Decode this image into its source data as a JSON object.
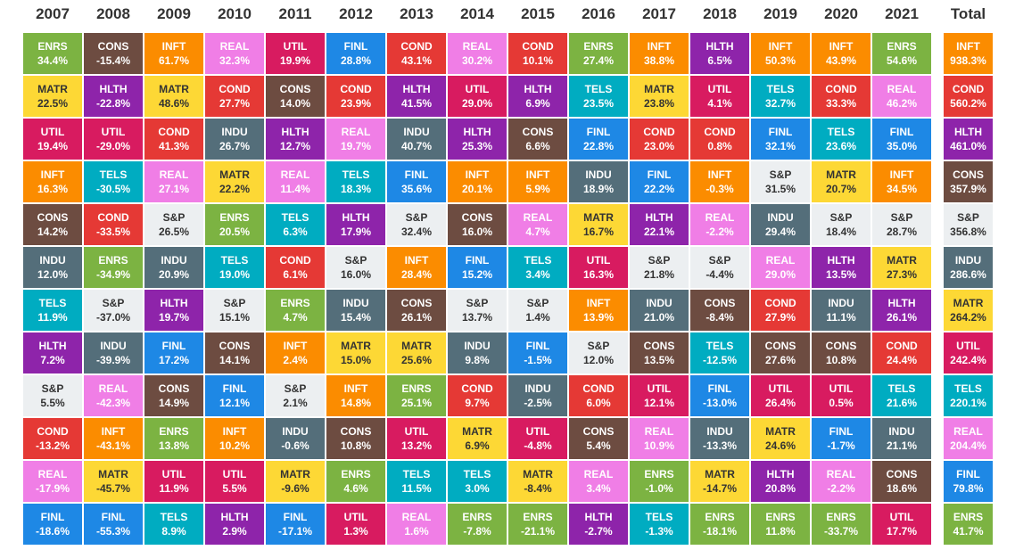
{
  "chart_data": {
    "type": "table",
    "title": "",
    "columns": [
      "2007",
      "2008",
      "2009",
      "2010",
      "2011",
      "2012",
      "2013",
      "2014",
      "2015",
      "2016",
      "2017",
      "2018",
      "2019",
      "2020",
      "2021"
    ],
    "total_label": "Total",
    "colors": {
      "ENRS": "#7cb342",
      "CONS": "#6d4c41",
      "INFT": "#fb8c00",
      "REAL": "#f07ee6",
      "UTIL": "#d81b60",
      "FINL": "#1e88e5",
      "COND": "#e53935",
      "HLTH": "#8e24aa",
      "MATR": "#fdd835",
      "TELS": "#00acc1",
      "INDU": "#546e7a",
      "S&P": "#eceff1"
    },
    "years": [
      {
        "year": "2007",
        "cells": [
          {
            "sector": "ENRS",
            "value": "34.4%"
          },
          {
            "sector": "MATR",
            "value": "22.5%"
          },
          {
            "sector": "UTIL",
            "value": "19.4%"
          },
          {
            "sector": "INFT",
            "value": "16.3%"
          },
          {
            "sector": "CONS",
            "value": "14.2%"
          },
          {
            "sector": "INDU",
            "value": "12.0%"
          },
          {
            "sector": "TELS",
            "value": "11.9%"
          },
          {
            "sector": "HLTH",
            "value": "7.2%"
          },
          {
            "sector": "S&P",
            "value": "5.5%"
          },
          {
            "sector": "COND",
            "value": "-13.2%"
          },
          {
            "sector": "REAL",
            "value": "-17.9%"
          },
          {
            "sector": "FINL",
            "value": "-18.6%"
          }
        ]
      },
      {
        "year": "2008",
        "cells": [
          {
            "sector": "CONS",
            "value": "-15.4%"
          },
          {
            "sector": "HLTH",
            "value": "-22.8%"
          },
          {
            "sector": "UTIL",
            "value": "-29.0%"
          },
          {
            "sector": "TELS",
            "value": "-30.5%"
          },
          {
            "sector": "COND",
            "value": "-33.5%"
          },
          {
            "sector": "ENRS",
            "value": "-34.9%"
          },
          {
            "sector": "S&P",
            "value": "-37.0%"
          },
          {
            "sector": "INDU",
            "value": "-39.9%"
          },
          {
            "sector": "REAL",
            "value": "-42.3%"
          },
          {
            "sector": "INFT",
            "value": "-43.1%"
          },
          {
            "sector": "MATR",
            "value": "-45.7%"
          },
          {
            "sector": "FINL",
            "value": "-55.3%"
          }
        ]
      },
      {
        "year": "2009",
        "cells": [
          {
            "sector": "INFT",
            "value": "61.7%"
          },
          {
            "sector": "MATR",
            "value": "48.6%"
          },
          {
            "sector": "COND",
            "value": "41.3%"
          },
          {
            "sector": "REAL",
            "value": "27.1%"
          },
          {
            "sector": "S&P",
            "value": "26.5%"
          },
          {
            "sector": "INDU",
            "value": "20.9%"
          },
          {
            "sector": "HLTH",
            "value": "19.7%"
          },
          {
            "sector": "FINL",
            "value": "17.2%"
          },
          {
            "sector": "CONS",
            "value": "14.9%"
          },
          {
            "sector": "ENRS",
            "value": "13.8%"
          },
          {
            "sector": "UTIL",
            "value": "11.9%"
          },
          {
            "sector": "TELS",
            "value": "8.9%"
          }
        ]
      },
      {
        "year": "2010",
        "cells": [
          {
            "sector": "REAL",
            "value": "32.3%"
          },
          {
            "sector": "COND",
            "value": "27.7%"
          },
          {
            "sector": "INDU",
            "value": "26.7%"
          },
          {
            "sector": "MATR",
            "value": "22.2%"
          },
          {
            "sector": "ENRS",
            "value": "20.5%"
          },
          {
            "sector": "TELS",
            "value": "19.0%"
          },
          {
            "sector": "S&P",
            "value": "15.1%"
          },
          {
            "sector": "CONS",
            "value": "14.1%"
          },
          {
            "sector": "FINL",
            "value": "12.1%"
          },
          {
            "sector": "INFT",
            "value": "10.2%"
          },
          {
            "sector": "UTIL",
            "value": "5.5%"
          },
          {
            "sector": "HLTH",
            "value": "2.9%"
          }
        ]
      },
      {
        "year": "2011",
        "cells": [
          {
            "sector": "UTIL",
            "value": "19.9%"
          },
          {
            "sector": "CONS",
            "value": "14.0%"
          },
          {
            "sector": "HLTH",
            "value": "12.7%"
          },
          {
            "sector": "REAL",
            "value": "11.4%"
          },
          {
            "sector": "TELS",
            "value": "6.3%"
          },
          {
            "sector": "COND",
            "value": "6.1%"
          },
          {
            "sector": "ENRS",
            "value": "4.7%"
          },
          {
            "sector": "INFT",
            "value": "2.4%"
          },
          {
            "sector": "S&P",
            "value": "2.1%"
          },
          {
            "sector": "INDU",
            "value": "-0.6%"
          },
          {
            "sector": "MATR",
            "value": "-9.6%"
          },
          {
            "sector": "FINL",
            "value": "-17.1%"
          }
        ]
      },
      {
        "year": "2012",
        "cells": [
          {
            "sector": "FINL",
            "value": "28.8%"
          },
          {
            "sector": "COND",
            "value": "23.9%"
          },
          {
            "sector": "REAL",
            "value": "19.7%"
          },
          {
            "sector": "TELS",
            "value": "18.3%"
          },
          {
            "sector": "HLTH",
            "value": "17.9%"
          },
          {
            "sector": "S&P",
            "value": "16.0%"
          },
          {
            "sector": "INDU",
            "value": "15.4%"
          },
          {
            "sector": "MATR",
            "value": "15.0%"
          },
          {
            "sector": "INFT",
            "value": "14.8%"
          },
          {
            "sector": "CONS",
            "value": "10.8%"
          },
          {
            "sector": "ENRS",
            "value": "4.6%"
          },
          {
            "sector": "UTIL",
            "value": "1.3%"
          }
        ]
      },
      {
        "year": "2013",
        "cells": [
          {
            "sector": "COND",
            "value": "43.1%"
          },
          {
            "sector": "HLTH",
            "value": "41.5%"
          },
          {
            "sector": "INDU",
            "value": "40.7%"
          },
          {
            "sector": "FINL",
            "value": "35.6%"
          },
          {
            "sector": "S&P",
            "value": "32.4%"
          },
          {
            "sector": "INFT",
            "value": "28.4%"
          },
          {
            "sector": "CONS",
            "value": "26.1%"
          },
          {
            "sector": "MATR",
            "value": "25.6%"
          },
          {
            "sector": "ENRS",
            "value": "25.1%"
          },
          {
            "sector": "UTIL",
            "value": "13.2%"
          },
          {
            "sector": "TELS",
            "value": "11.5%"
          },
          {
            "sector": "REAL",
            "value": "1.6%"
          }
        ]
      },
      {
        "year": "2014",
        "cells": [
          {
            "sector": "REAL",
            "value": "30.2%"
          },
          {
            "sector": "UTIL",
            "value": "29.0%"
          },
          {
            "sector": "HLTH",
            "value": "25.3%"
          },
          {
            "sector": "INFT",
            "value": "20.1%"
          },
          {
            "sector": "CONS",
            "value": "16.0%"
          },
          {
            "sector": "FINL",
            "value": "15.2%"
          },
          {
            "sector": "S&P",
            "value": "13.7%"
          },
          {
            "sector": "INDU",
            "value": "9.8%"
          },
          {
            "sector": "COND",
            "value": "9.7%"
          },
          {
            "sector": "MATR",
            "value": "6.9%"
          },
          {
            "sector": "TELS",
            "value": "3.0%"
          },
          {
            "sector": "ENRS",
            "value": "-7.8%"
          }
        ]
      },
      {
        "year": "2015",
        "cells": [
          {
            "sector": "COND",
            "value": "10.1%"
          },
          {
            "sector": "HLTH",
            "value": "6.9%"
          },
          {
            "sector": "CONS",
            "value": "6.6%"
          },
          {
            "sector": "INFT",
            "value": "5.9%"
          },
          {
            "sector": "REAL",
            "value": "4.7%"
          },
          {
            "sector": "TELS",
            "value": "3.4%"
          },
          {
            "sector": "S&P",
            "value": "1.4%"
          },
          {
            "sector": "FINL",
            "value": "-1.5%"
          },
          {
            "sector": "INDU",
            "value": "-2.5%"
          },
          {
            "sector": "UTIL",
            "value": "-4.8%"
          },
          {
            "sector": "MATR",
            "value": "-8.4%"
          },
          {
            "sector": "ENRS",
            "value": "-21.1%"
          }
        ]
      },
      {
        "year": "2016",
        "cells": [
          {
            "sector": "ENRS",
            "value": "27.4%"
          },
          {
            "sector": "TELS",
            "value": "23.5%"
          },
          {
            "sector": "FINL",
            "value": "22.8%"
          },
          {
            "sector": "INDU",
            "value": "18.9%"
          },
          {
            "sector": "MATR",
            "value": "16.7%"
          },
          {
            "sector": "UTIL",
            "value": "16.3%"
          },
          {
            "sector": "INFT",
            "value": "13.9%"
          },
          {
            "sector": "S&P",
            "value": "12.0%"
          },
          {
            "sector": "COND",
            "value": "6.0%"
          },
          {
            "sector": "CONS",
            "value": "5.4%"
          },
          {
            "sector": "REAL",
            "value": "3.4%"
          },
          {
            "sector": "HLTH",
            "value": "-2.7%"
          }
        ]
      },
      {
        "year": "2017",
        "cells": [
          {
            "sector": "INFT",
            "value": "38.8%"
          },
          {
            "sector": "MATR",
            "value": "23.8%"
          },
          {
            "sector": "COND",
            "value": "23.0%"
          },
          {
            "sector": "FINL",
            "value": "22.2%"
          },
          {
            "sector": "HLTH",
            "value": "22.1%"
          },
          {
            "sector": "S&P",
            "value": "21.8%"
          },
          {
            "sector": "INDU",
            "value": "21.0%"
          },
          {
            "sector": "CONS",
            "value": "13.5%"
          },
          {
            "sector": "UTIL",
            "value": "12.1%"
          },
          {
            "sector": "REAL",
            "value": "10.9%"
          },
          {
            "sector": "ENRS",
            "value": "-1.0%"
          },
          {
            "sector": "TELS",
            "value": "-1.3%"
          }
        ]
      },
      {
        "year": "2018",
        "cells": [
          {
            "sector": "HLTH",
            "value": "6.5%"
          },
          {
            "sector": "UTIL",
            "value": "4.1%"
          },
          {
            "sector": "COND",
            "value": "0.8%"
          },
          {
            "sector": "INFT",
            "value": "-0.3%"
          },
          {
            "sector": "REAL",
            "value": "-2.2%"
          },
          {
            "sector": "S&P",
            "value": "-4.4%"
          },
          {
            "sector": "CONS",
            "value": "-8.4%"
          },
          {
            "sector": "TELS",
            "value": "-12.5%"
          },
          {
            "sector": "FINL",
            "value": "-13.0%"
          },
          {
            "sector": "INDU",
            "value": "-13.3%"
          },
          {
            "sector": "MATR",
            "value": "-14.7%"
          },
          {
            "sector": "ENRS",
            "value": "-18.1%"
          }
        ]
      },
      {
        "year": "2019",
        "cells": [
          {
            "sector": "INFT",
            "value": "50.3%"
          },
          {
            "sector": "TELS",
            "value": "32.7%"
          },
          {
            "sector": "FINL",
            "value": "32.1%"
          },
          {
            "sector": "S&P",
            "value": "31.5%"
          },
          {
            "sector": "INDU",
            "value": "29.4%"
          },
          {
            "sector": "REAL",
            "value": "29.0%"
          },
          {
            "sector": "COND",
            "value": "27.9%"
          },
          {
            "sector": "CONS",
            "value": "27.6%"
          },
          {
            "sector": "UTIL",
            "value": "26.4%"
          },
          {
            "sector": "MATR",
            "value": "24.6%"
          },
          {
            "sector": "HLTH",
            "value": "20.8%"
          },
          {
            "sector": "ENRS",
            "value": "11.8%"
          }
        ]
      },
      {
        "year": "2020",
        "cells": [
          {
            "sector": "INFT",
            "value": "43.9%"
          },
          {
            "sector": "COND",
            "value": "33.3%"
          },
          {
            "sector": "TELS",
            "value": "23.6%"
          },
          {
            "sector": "MATR",
            "value": "20.7%"
          },
          {
            "sector": "S&P",
            "value": "18.4%"
          },
          {
            "sector": "HLTH",
            "value": "13.5%"
          },
          {
            "sector": "INDU",
            "value": "11.1%"
          },
          {
            "sector": "CONS",
            "value": "10.8%"
          },
          {
            "sector": "UTIL",
            "value": "0.5%"
          },
          {
            "sector": "FINL",
            "value": "-1.7%"
          },
          {
            "sector": "REAL",
            "value": "-2.2%"
          },
          {
            "sector": "ENRS",
            "value": "-33.7%"
          }
        ]
      },
      {
        "year": "2021",
        "cells": [
          {
            "sector": "ENRS",
            "value": "54.6%"
          },
          {
            "sector": "REAL",
            "value": "46.2%"
          },
          {
            "sector": "FINL",
            "value": "35.0%"
          },
          {
            "sector": "INFT",
            "value": "34.5%"
          },
          {
            "sector": "S&P",
            "value": "28.7%"
          },
          {
            "sector": "MATR",
            "value": "27.3%"
          },
          {
            "sector": "HLTH",
            "value": "26.1%"
          },
          {
            "sector": "COND",
            "value": "24.4%"
          },
          {
            "sector": "TELS",
            "value": "21.6%"
          },
          {
            "sector": "INDU",
            "value": "21.1%"
          },
          {
            "sector": "CONS",
            "value": "18.6%"
          },
          {
            "sector": "UTIL",
            "value": "17.7%"
          }
        ]
      }
    ],
    "total": [
      {
        "sector": "INFT",
        "value": "938.3%"
      },
      {
        "sector": "COND",
        "value": "560.2%"
      },
      {
        "sector": "HLTH",
        "value": "461.0%"
      },
      {
        "sector": "CONS",
        "value": "357.9%"
      },
      {
        "sector": "S&P",
        "value": "356.8%"
      },
      {
        "sector": "INDU",
        "value": "286.6%"
      },
      {
        "sector": "MATR",
        "value": "264.2%"
      },
      {
        "sector": "UTIL",
        "value": "242.4%"
      },
      {
        "sector": "TELS",
        "value": "220.1%"
      },
      {
        "sector": "REAL",
        "value": "204.4%"
      },
      {
        "sector": "FINL",
        "value": "79.8%"
      },
      {
        "sector": "ENRS",
        "value": "41.7%"
      }
    ]
  }
}
